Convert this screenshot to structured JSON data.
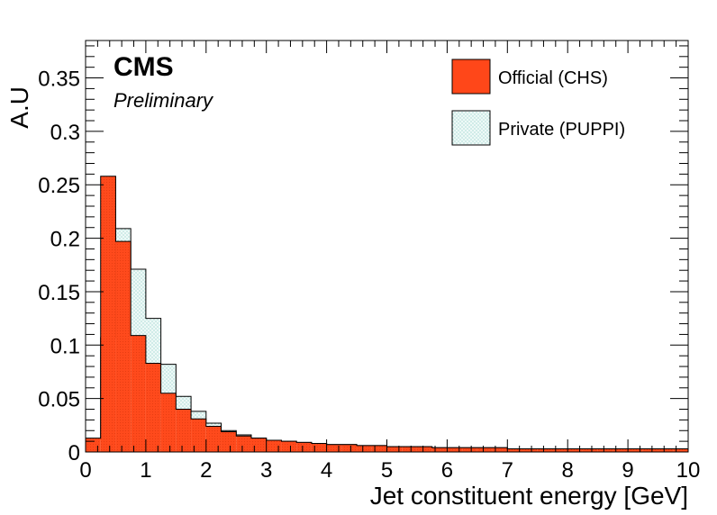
{
  "chart_data": {
    "type": "area",
    "cms_label": "CMS",
    "cms_sublabel": "Preliminary",
    "xlabel": "Jet constituent energy [GeV]",
    "ylabel": "A.U",
    "xlim": [
      0,
      10
    ],
    "ylim": [
      0,
      0.385
    ],
    "x_ticks": [
      0,
      1,
      2,
      3,
      4,
      5,
      6,
      7,
      8,
      9,
      10
    ],
    "y_ticks": [
      0,
      0.05,
      0.1,
      0.15,
      0.2,
      0.25,
      0.3,
      0.35
    ],
    "y_tick_labels": [
      "0",
      "0.05",
      "0.1",
      "0.15",
      "0.2",
      "0.25",
      "0.3",
      "0.35"
    ],
    "legend_position": "top-right",
    "bin_width": 0.25,
    "bin_start": 0,
    "series": [
      {
        "name": "Private (PUPPI)",
        "color": "#e8f7f5",
        "values": [
          0.012,
          0.107,
          0.209,
          0.171,
          0.125,
          0.082,
          0.052,
          0.038,
          0.027,
          0.02,
          0.016,
          0.013,
          0.011,
          0.01,
          0.009,
          0.008,
          0.007,
          0.007,
          0.006,
          0.006,
          0.005,
          0.005,
          0.005,
          0.004,
          0.004,
          0.004,
          0.004,
          0.004,
          0.003,
          0.003,
          0.003,
          0.003,
          0.003,
          0.003,
          0.003,
          0.003,
          0.003,
          0.003,
          0.003,
          0.003
        ]
      },
      {
        "name": "Official (CHS)",
        "color": "#ff4719",
        "values": [
          0.013,
          0.258,
          0.197,
          0.109,
          0.083,
          0.055,
          0.04,
          0.031,
          0.024,
          0.019,
          0.015,
          0.013,
          0.011,
          0.01,
          0.009,
          0.008,
          0.007,
          0.007,
          0.006,
          0.006,
          0.005,
          0.005,
          0.005,
          0.004,
          0.004,
          0.004,
          0.004,
          0.004,
          0.003,
          0.003,
          0.003,
          0.003,
          0.003,
          0.003,
          0.003,
          0.003,
          0.003,
          0.003,
          0.003,
          0.003
        ]
      }
    ]
  }
}
